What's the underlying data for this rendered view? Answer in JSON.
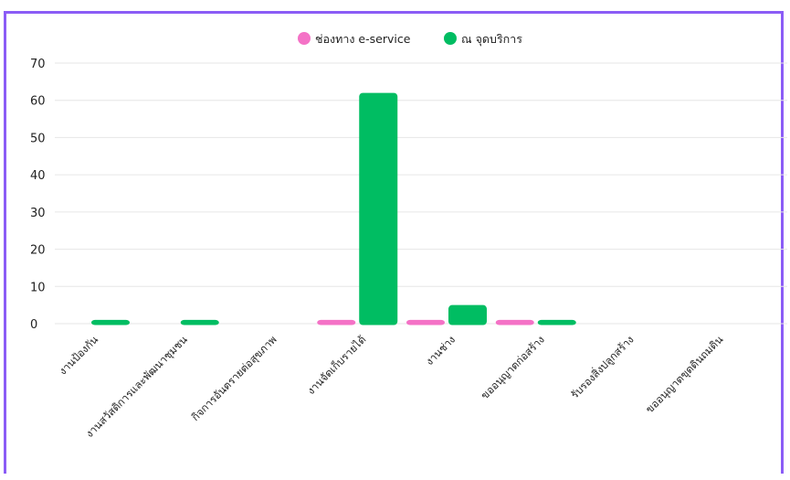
{
  "chart_data": {
    "type": "bar",
    "categories": [
      "งานป้องกัน",
      "งานสวัสดิการและพัฒนาชุมชน",
      "กิจการอันตรายต่อสุขภาพ",
      "งานจัดเก็บรายได้",
      "งานช่าง",
      "ขออนุญาตก่อสร้าง",
      "รับรองสิ่งปลูกสร้าง",
      "ขออนุญาตขุดดินถมดิน"
    ],
    "series": [
      {
        "name": "ช่องทาง e-service",
        "color": "#f472c6",
        "values": [
          0,
          0,
          0,
          1,
          1,
          1,
          0,
          0
        ]
      },
      {
        "name": "ณ จุดบริการ",
        "color": "#00bd62",
        "values": [
          1,
          1,
          0,
          62,
          5,
          1,
          0,
          0
        ]
      }
    ],
    "yticks": [
      0,
      10,
      20,
      30,
      40,
      50,
      60,
      70
    ],
    "ylim": [
      0,
      70
    ],
    "legend_position": "top-center",
    "grid": true
  }
}
